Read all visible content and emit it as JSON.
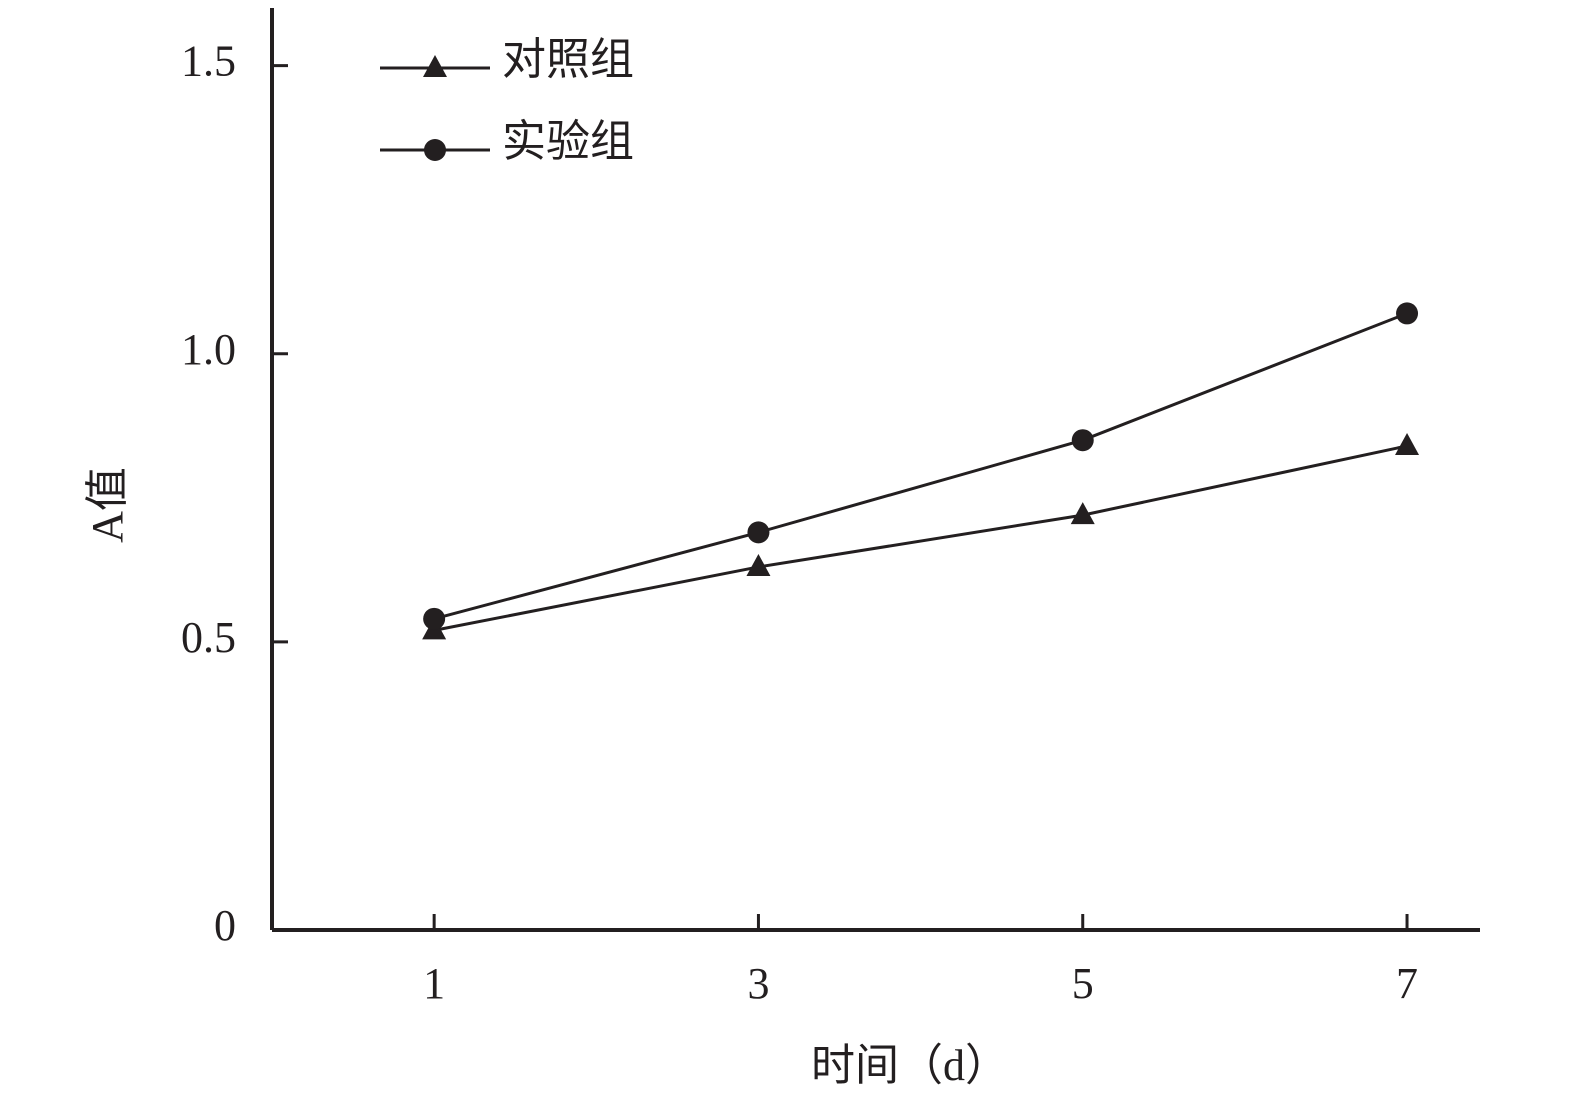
{
  "chart_data": {
    "type": "line",
    "x_label": "时间（d）",
    "y_label": "A值",
    "x": [
      1,
      3,
      5,
      7
    ],
    "xlim": [
      0,
      7.45
    ],
    "xticks": [
      1,
      3,
      5,
      7
    ],
    "ylim": [
      0,
      1.6
    ],
    "yticks": [
      0,
      0.5,
      {
        "value": 1,
        "label": "1.0"
      },
      1.5
    ],
    "grid": false,
    "legend": "upper left",
    "series": [
      {
        "name": "对照组",
        "color": "#231f20",
        "marker": "triangle",
        "values": [
          0.52,
          0.63,
          0.72,
          0.84
        ]
      },
      {
        "name": "实验组",
        "color": "#231f20",
        "marker": "circle",
        "values": [
          0.54,
          0.69,
          0.85,
          1.07
        ]
      }
    ]
  }
}
